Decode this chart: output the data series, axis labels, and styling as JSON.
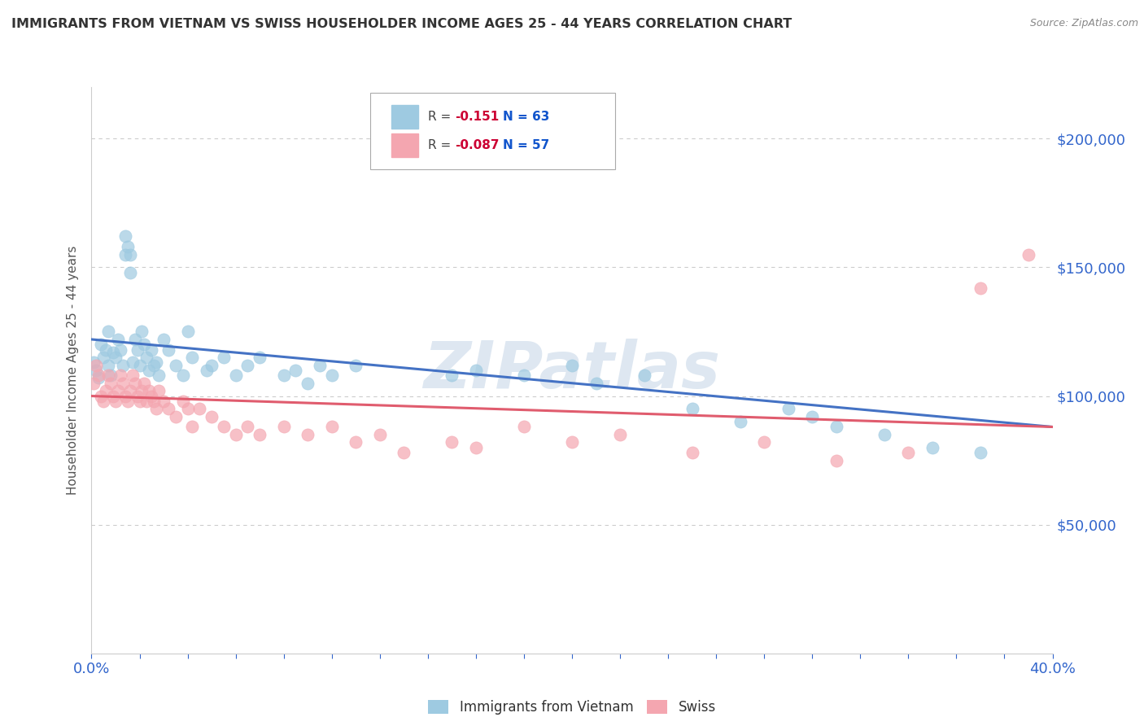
{
  "title": "IMMIGRANTS FROM VIETNAM VS SWISS HOUSEHOLDER INCOME AGES 25 - 44 YEARS CORRELATION CHART",
  "source": "Source: ZipAtlas.com",
  "ylabel": "Householder Income Ages 25 - 44 years",
  "xlim": [
    0.0,
    0.4
  ],
  "ylim": [
    0,
    220000
  ],
  "yticks": [
    50000,
    100000,
    150000,
    200000
  ],
  "ytick_labels": [
    "$50,000",
    "$100,000",
    "$150,000",
    "$200,000"
  ],
  "series": [
    {
      "name": "Immigrants from Vietnam",
      "R": -0.151,
      "N": 63,
      "line_color": "#4472C4",
      "marker_color": "#9ecae1",
      "x": [
        0.001,
        0.002,
        0.003,
        0.004,
        0.005,
        0.006,
        0.007,
        0.007,
        0.008,
        0.009,
        0.01,
        0.011,
        0.012,
        0.013,
        0.014,
        0.014,
        0.015,
        0.016,
        0.016,
        0.017,
        0.018,
        0.019,
        0.02,
        0.021,
        0.022,
        0.023,
        0.024,
        0.025,
        0.026,
        0.027,
        0.028,
        0.03,
        0.032,
        0.035,
        0.038,
        0.04,
        0.042,
        0.048,
        0.05,
        0.055,
        0.06,
        0.065,
        0.07,
        0.08,
        0.085,
        0.09,
        0.095,
        0.1,
        0.11,
        0.15,
        0.16,
        0.18,
        0.2,
        0.21,
        0.23,
        0.25,
        0.27,
        0.29,
        0.3,
        0.31,
        0.33,
        0.35,
        0.37
      ],
      "y": [
        113000,
        110000,
        107000,
        120000,
        115000,
        118000,
        112000,
        125000,
        108000,
        117000,
        115000,
        122000,
        118000,
        112000,
        155000,
        162000,
        158000,
        148000,
        155000,
        113000,
        122000,
        118000,
        112000,
        125000,
        120000,
        115000,
        110000,
        118000,
        112000,
        113000,
        108000,
        122000,
        118000,
        112000,
        108000,
        125000,
        115000,
        110000,
        112000,
        115000,
        108000,
        112000,
        115000,
        108000,
        110000,
        105000,
        112000,
        108000,
        112000,
        108000,
        110000,
        108000,
        112000,
        105000,
        108000,
        95000,
        90000,
        95000,
        92000,
        88000,
        85000,
        80000,
        78000
      ]
    },
    {
      "name": "Swiss",
      "R": -0.087,
      "N": 57,
      "line_color": "#E05C6E",
      "marker_color": "#f4a6b0",
      "x": [
        0.001,
        0.002,
        0.003,
        0.004,
        0.005,
        0.006,
        0.007,
        0.008,
        0.009,
        0.01,
        0.011,
        0.012,
        0.013,
        0.014,
        0.015,
        0.016,
        0.017,
        0.018,
        0.019,
        0.02,
        0.021,
        0.022,
        0.023,
        0.024,
        0.025,
        0.026,
        0.027,
        0.028,
        0.03,
        0.032,
        0.035,
        0.038,
        0.04,
        0.042,
        0.045,
        0.05,
        0.055,
        0.06,
        0.065,
        0.07,
        0.08,
        0.09,
        0.1,
        0.11,
        0.12,
        0.13,
        0.15,
        0.16,
        0.18,
        0.2,
        0.22,
        0.25,
        0.28,
        0.31,
        0.34,
        0.37,
        0.39
      ],
      "y": [
        105000,
        112000,
        108000,
        100000,
        98000,
        102000,
        108000,
        105000,
        100000,
        98000,
        102000,
        108000,
        105000,
        100000,
        98000,
        102000,
        108000,
        105000,
        100000,
        98000,
        102000,
        105000,
        98000,
        102000,
        100000,
        98000,
        95000,
        102000,
        98000,
        95000,
        92000,
        98000,
        95000,
        88000,
        95000,
        92000,
        88000,
        85000,
        88000,
        85000,
        88000,
        85000,
        88000,
        82000,
        85000,
        78000,
        82000,
        80000,
        88000,
        82000,
        85000,
        78000,
        82000,
        75000,
        78000,
        142000,
        155000
      ]
    }
  ],
  "watermark": "ZIPatlas",
  "watermark_color": "#c8d8e8",
  "background_color": "#ffffff",
  "grid_color": "#cccccc",
  "title_color": "#333333",
  "axis_label_color": "#555555",
  "tick_color": "#3366cc",
  "source_color": "#888888"
}
